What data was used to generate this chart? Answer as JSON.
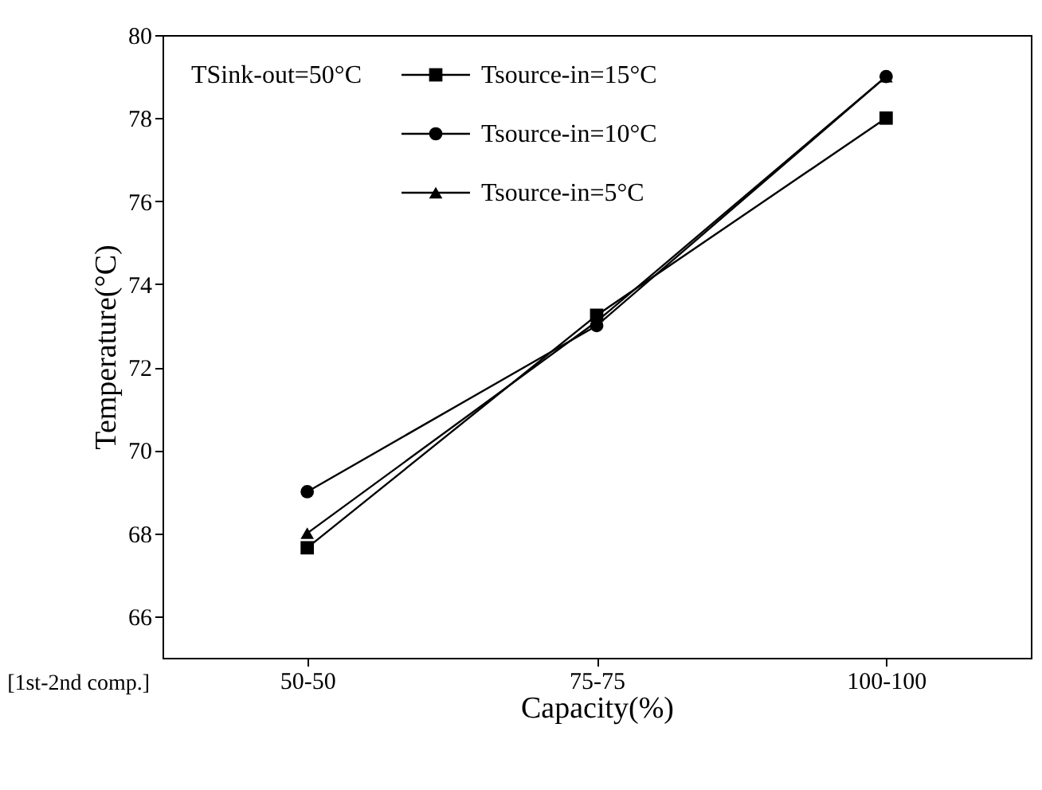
{
  "chart_data": {
    "type": "line",
    "xlabel": "Capacity(%)",
    "ylabel": "Temperature(°C)",
    "categories": [
      "50-50",
      "75-75",
      "100-100"
    ],
    "legend_title": "TSink-out=50°C",
    "series": [
      {
        "name": "Tsource-in=15°C",
        "color": "#000000",
        "marker": "square",
        "values": [
          67.65,
          73.25,
          78.0
        ]
      },
      {
        "name": "Tsource-in=10°C",
        "color": "#000000",
        "marker": "circle",
        "values": [
          69.0,
          73.0,
          79.0
        ]
      },
      {
        "name": "Tsource-in=5°C",
        "color": "#000000",
        "marker": "triangle",
        "values": [
          68.0,
          73.1,
          79.0
        ]
      }
    ],
    "ylim": [
      65,
      80
    ],
    "yticks": [
      66,
      68,
      70,
      72,
      74,
      76,
      78,
      80
    ],
    "annotations": [
      "[1st-2nd comp.]"
    ],
    "legend": "top left",
    "grid": false,
    "line_style": "solid"
  }
}
